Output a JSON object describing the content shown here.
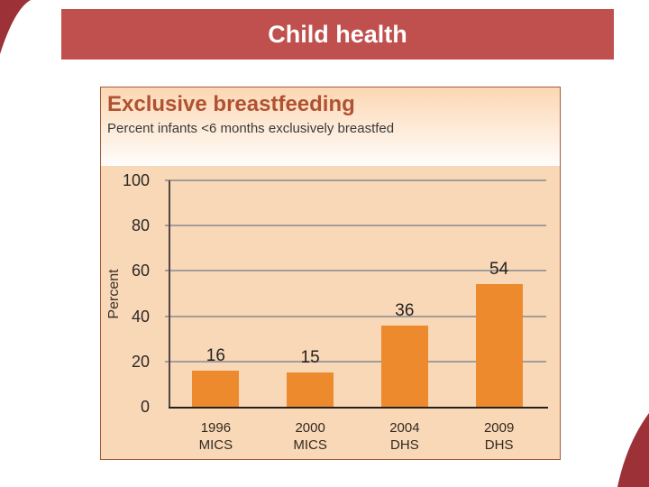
{
  "slide": {
    "title": "Child health"
  },
  "panel": {
    "title": "Exclusive breastfeeding",
    "subtitle": "Percent infants <6 months exclusively breastfed"
  },
  "chart_data": {
    "type": "bar",
    "title": "Exclusive breastfeeding",
    "subtitle": "Percent infants <6 months exclusively breastfed",
    "categories": [
      "1996 MICS",
      "2000 MICS",
      "2004 DHS",
      "2009 DHS"
    ],
    "categories_lines": [
      [
        "1996",
        "MICS"
      ],
      [
        "2000",
        "MICS"
      ],
      [
        "2004",
        "DHS"
      ],
      [
        "2009",
        "DHS"
      ]
    ],
    "values": [
      16,
      15,
      36,
      54
    ],
    "data_labels": [
      16,
      15,
      36,
      54
    ],
    "xlabel": "",
    "ylabel": "Percent",
    "ylim": [
      0,
      100
    ],
    "yticks": [
      0,
      20,
      40,
      60,
      80,
      100
    ],
    "grid": true,
    "legend": false,
    "bar_color": "#ed8a2d",
    "plot_bg": "#f9d8b8"
  },
  "colors": {
    "title_bar": "#c0504d",
    "corner": "#9c3137",
    "panel_border": "#a25b3a",
    "plot_bg": "#f9d8b8",
    "gridline": "#a39d99",
    "bar": "#ed8a2d",
    "chart_title": "#b05231"
  }
}
